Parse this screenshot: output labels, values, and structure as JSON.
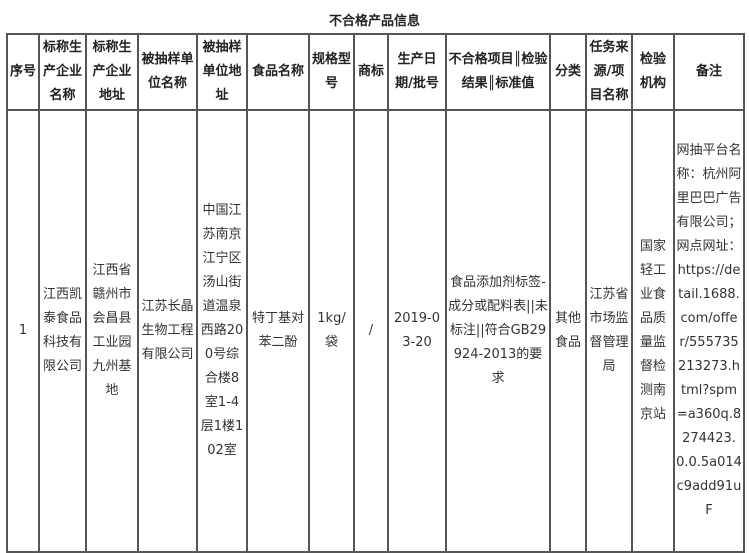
{
  "title": "不合格产品信息",
  "headers": [
    "序号",
    "标称生产企业名称",
    "标称生产企业地址",
    "被抽样单位名称",
    "被抽样单位地址",
    "食品名称",
    "规格型号",
    "商标",
    "生产日期/批号",
    "不合格项目║检验结果║标准值",
    "分类",
    "任务来源/项目名称",
    "检验机构",
    "备注"
  ],
  "rows": [
    [
      "1",
      "江西凯泰食品科技有限公司",
      "江西省赣州市会昌县工业园九州基地",
      "江苏长晶生物工程有限公司",
      "中国江苏南京江宁区汤山街道温泉西路200号综合楼8室1-4层1楼102室",
      "特丁基对苯二酚",
      "1kg/袋",
      "/",
      "2019-03-20",
      "食品添加剂标签-成分或配料表||未标注||符合GB29924-2013的要求",
      "其他食品",
      "江苏省市场监督管理局",
      "国家轻工业食品质量监督检测南京站",
      "网抽平台名称：杭州阿里巴巴广告有限公司；网点网址：https://detail.1688.com/offer/555735213273.html?spm=a360q.8274423.0.0.5a014c9add91uF"
    ]
  ]
}
